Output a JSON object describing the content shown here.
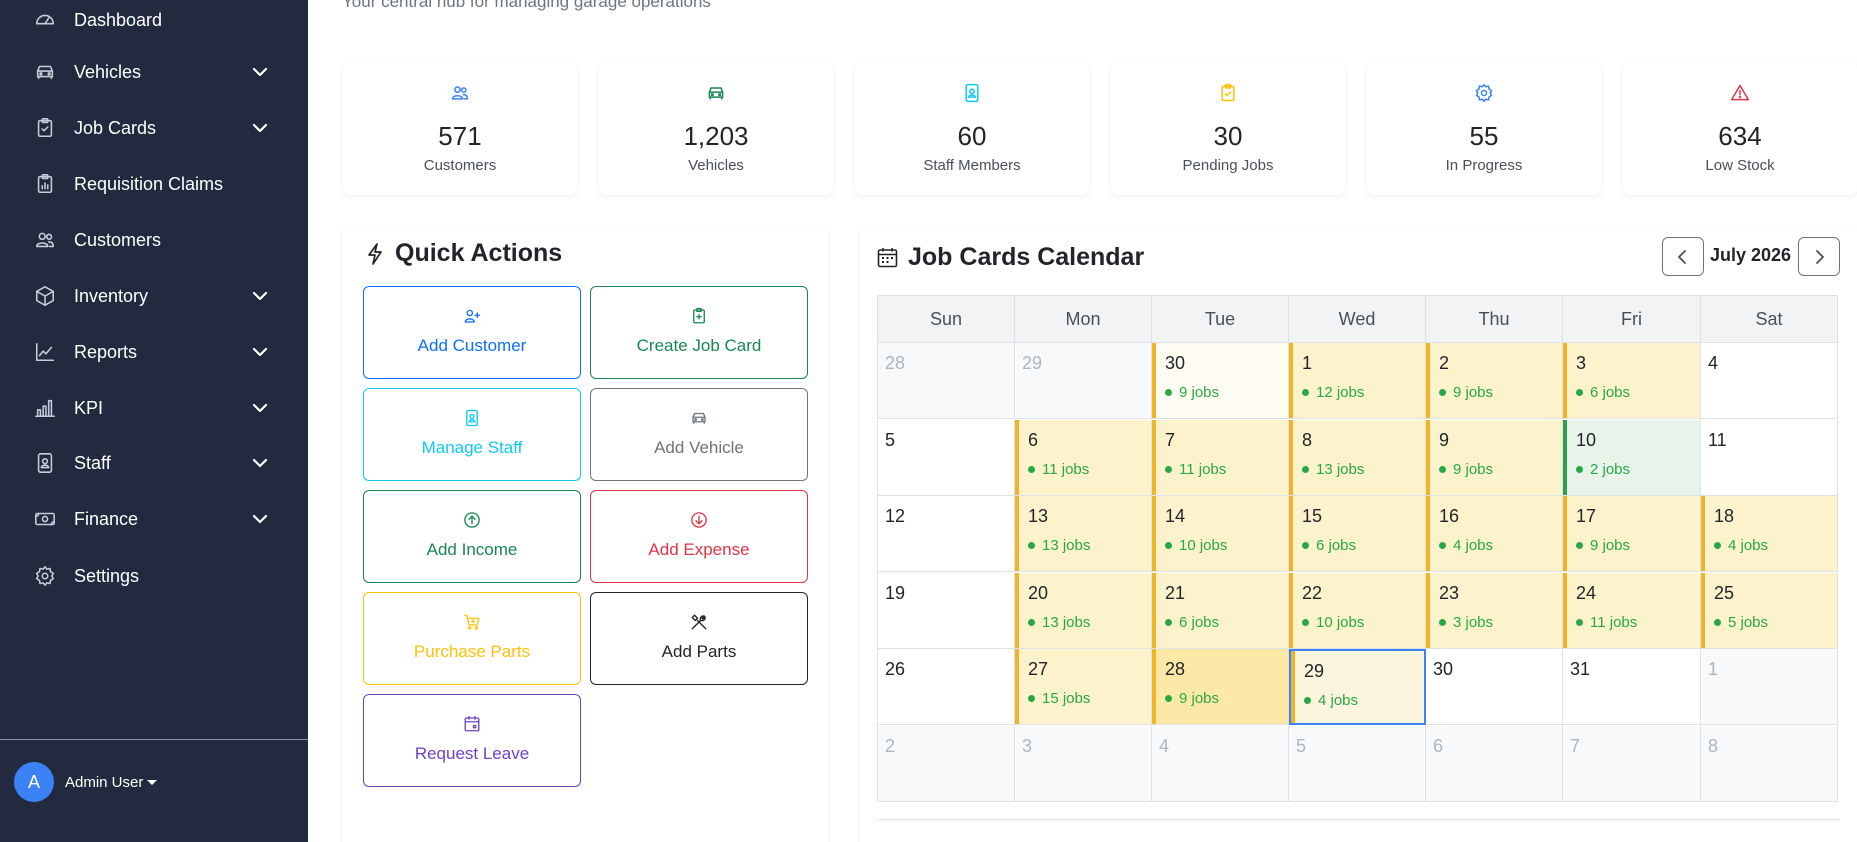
{
  "header": {
    "subtitle": "Your central hub for managing garage operations"
  },
  "sidebar": {
    "items": [
      {
        "label": "Dashboard",
        "icon": "dashboard-icon",
        "expandable": false
      },
      {
        "label": "Vehicles",
        "icon": "car-icon",
        "expandable": true
      },
      {
        "label": "Job Cards",
        "icon": "clipboard-icon",
        "expandable": true
      },
      {
        "label": "Requisition Claims",
        "icon": "receipt-icon",
        "expandable": false
      },
      {
        "label": "Customers",
        "icon": "people-icon",
        "expandable": false
      },
      {
        "label": "Inventory",
        "icon": "box-icon",
        "expandable": true
      },
      {
        "label": "Reports",
        "icon": "line-chart-icon",
        "expandable": true
      },
      {
        "label": "KPI",
        "icon": "bar-chart-icon",
        "expandable": true
      },
      {
        "label": "Staff",
        "icon": "id-badge-icon",
        "expandable": true
      },
      {
        "label": "Finance",
        "icon": "cash-icon",
        "expandable": true
      },
      {
        "label": "Settings",
        "icon": "gear-icon",
        "expandable": false
      }
    ],
    "user": {
      "initial": "A",
      "name": "Admin User"
    }
  },
  "stats": [
    {
      "value": "571",
      "label": "Customers",
      "icon": "people-icon",
      "color": "#3b82f6"
    },
    {
      "value": "1,203",
      "label": "Vehicles",
      "icon": "car-icon",
      "color": "#198754"
    },
    {
      "value": "60",
      "label": "Staff Members",
      "icon": "id-badge-icon",
      "color": "#0dcaf0"
    },
    {
      "value": "30",
      "label": "Pending Jobs",
      "icon": "clipboard-icon",
      "color": "#ffc107"
    },
    {
      "value": "55",
      "label": "In Progress",
      "icon": "gear-icon",
      "color": "#3b82f6"
    },
    {
      "value": "634",
      "label": "Low Stock",
      "icon": "warning-icon",
      "color": "#dc3545"
    }
  ],
  "quick_actions": {
    "title": "Quick Actions",
    "buttons": [
      {
        "label": "Add Customer",
        "icon": "person-plus-icon",
        "color": "#0d6efd"
      },
      {
        "label": "Create Job Card",
        "icon": "clipboard-plus-icon",
        "color": "#198754"
      },
      {
        "label": "Manage Staff",
        "icon": "id-badge-icon",
        "color": "#0dcaf0"
      },
      {
        "label": "Add Vehicle",
        "icon": "car-icon",
        "color": "#6c757d"
      },
      {
        "label": "Add Income",
        "icon": "arrow-up-circle-icon",
        "color": "#198754"
      },
      {
        "label": "Add Expense",
        "icon": "arrow-down-circle-icon",
        "color": "#dc3545"
      },
      {
        "label": "Purchase Parts",
        "icon": "cart-plus-icon",
        "color": "#ffc107"
      },
      {
        "label": "Add Parts",
        "icon": "tools-icon",
        "color": "#212529"
      },
      {
        "label": "Request Leave",
        "icon": "calendar-event-icon",
        "color": "#6f42c1"
      }
    ]
  },
  "calendar": {
    "title": "Job Cards Calendar",
    "month": "July 2026",
    "weekdays": [
      "Sun",
      "Mon",
      "Tue",
      "Wed",
      "Thu",
      "Fri",
      "Sat"
    ],
    "days": [
      {
        "d": "28",
        "other": true
      },
      {
        "d": "29",
        "other": true
      },
      {
        "d": "30",
        "jobs": "9 jobs",
        "other": true
      },
      {
        "d": "1",
        "jobs": "12 jobs"
      },
      {
        "d": "2",
        "jobs": "9 jobs"
      },
      {
        "d": "3",
        "jobs": "6 jobs"
      },
      {
        "d": "4"
      },
      {
        "d": "5"
      },
      {
        "d": "6",
        "jobs": "11 jobs"
      },
      {
        "d": "7",
        "jobs": "11 jobs"
      },
      {
        "d": "8",
        "jobs": "13 jobs"
      },
      {
        "d": "9",
        "jobs": "9 jobs"
      },
      {
        "d": "10",
        "jobs": "2 jobs",
        "status": "done"
      },
      {
        "d": "11"
      },
      {
        "d": "12"
      },
      {
        "d": "13",
        "jobs": "13 jobs"
      },
      {
        "d": "14",
        "jobs": "10 jobs"
      },
      {
        "d": "15",
        "jobs": "6 jobs"
      },
      {
        "d": "16",
        "jobs": "4 jobs"
      },
      {
        "d": "17",
        "jobs": "9 jobs"
      },
      {
        "d": "18",
        "jobs": "4 jobs"
      },
      {
        "d": "19"
      },
      {
        "d": "20",
        "jobs": "13 jobs"
      },
      {
        "d": "21",
        "jobs": "6 jobs"
      },
      {
        "d": "22",
        "jobs": "10 jobs"
      },
      {
        "d": "23",
        "jobs": "3 jobs"
      },
      {
        "d": "24",
        "jobs": "11 jobs"
      },
      {
        "d": "25",
        "jobs": "5 jobs"
      },
      {
        "d": "26"
      },
      {
        "d": "27",
        "jobs": "15 jobs"
      },
      {
        "d": "28",
        "jobs": "9 jobs",
        "status": "busy"
      },
      {
        "d": "29",
        "jobs": "4 jobs",
        "today": true
      },
      {
        "d": "30"
      },
      {
        "d": "31"
      },
      {
        "d": "1",
        "other": true
      },
      {
        "d": "2",
        "other": true
      },
      {
        "d": "3",
        "other": true
      },
      {
        "d": "4",
        "other": true
      },
      {
        "d": "5",
        "other": true
      },
      {
        "d": "6",
        "other": true
      },
      {
        "d": "7",
        "other": true
      },
      {
        "d": "8",
        "other": true
      }
    ]
  }
}
